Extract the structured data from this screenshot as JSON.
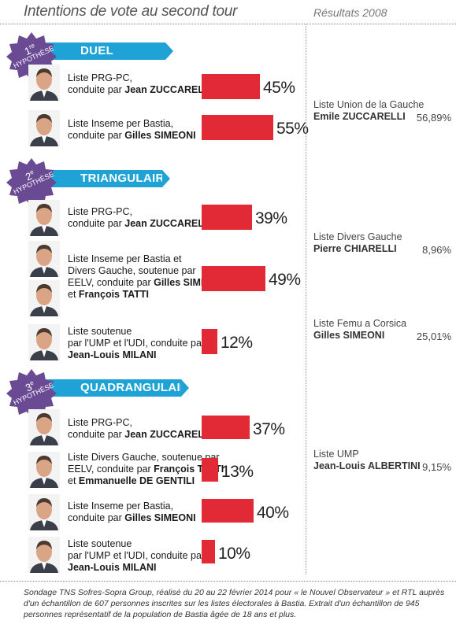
{
  "header": {
    "title": "Intentions de vote au second tour",
    "results_title": "Résultats 2008"
  },
  "sections": [
    {
      "name": "DUEL",
      "hyp_num": "1",
      "hyp_sup": "re",
      "hyp_word": "HYPOTHÈSE"
    },
    {
      "name": "TRIANGULAIRE",
      "hyp_num": "2",
      "hyp_sup": "e",
      "hyp_word": "HYPOTHÈSE"
    },
    {
      "name": "QUADRANGULAIRE",
      "hyp_num": "3",
      "hyp_sup": "e",
      "hyp_word": "HYPOTHÈSE"
    }
  ],
  "rows": [
    {
      "l1": "Liste PRG-PC,",
      "l2pre": "conduite par ",
      "l2b": "Jean ZUCCARELLI",
      "l3pre": "",
      "l3b": "",
      "l4": "",
      "value": 45,
      "pct": "45%"
    },
    {
      "l1": "Liste Inseme per Bastia,",
      "l2pre": "conduite par ",
      "l2b": "Gilles SIMEONI",
      "l3pre": "",
      "l3b": "",
      "l4": "",
      "value": 55,
      "pct": "55%"
    },
    {
      "l1": "Liste PRG-PC,",
      "l2pre": "conduite par ",
      "l2b": "Jean ZUCCARELLI",
      "l3pre": "",
      "l3b": "",
      "l4": "",
      "value": 39,
      "pct": "39%"
    },
    {
      "l1": "Liste Inseme per Bastia et",
      "l2pre": "Divers Gauche, soutenue par",
      "l2b": "",
      "l3pre": "EELV, conduite par ",
      "l3b": "Gilles SIMEONI",
      "l4pre": "et ",
      "l4b": "François TATTI",
      "value": 49,
      "pct": "49%"
    },
    {
      "l1": "Liste soutenue",
      "l2pre": "par l'UMP et l'UDI, conduite par",
      "l2b": "",
      "l3pre": "",
      "l3b": "Jean-Louis MILANI",
      "l4": "",
      "value": 12,
      "pct": "12%"
    },
    {
      "l1": "Liste PRG-PC,",
      "l2pre": "conduite par ",
      "l2b": "Jean ZUCCARELLI",
      "l3pre": "",
      "l3b": "",
      "l4": "",
      "value": 37,
      "pct": "37%"
    },
    {
      "l1": "Liste Divers Gauche, soutenue par",
      "l2pre": "EELV, conduite par ",
      "l2b": "François TATTI",
      "l3pre": "et ",
      "l3b": "Emmanuelle DE GENTILI",
      "l4": "",
      "value": 13,
      "pct": "13%"
    },
    {
      "l1": "Liste Inseme per Bastia,",
      "l2pre": "conduite par ",
      "l2b": "Gilles SIMEONI",
      "l3pre": "",
      "l3b": "",
      "l4": "",
      "value": 40,
      "pct": "40%"
    },
    {
      "l1": "Liste soutenue",
      "l2pre": "par l'UMP et l'UDI, conduite par",
      "l2b": "",
      "l3pre": "",
      "l3b": "Jean-Louis MILANI",
      "l4": "",
      "value": 10,
      "pct": "10%"
    }
  ],
  "results_2008": [
    {
      "list": "Liste Union de la Gauche",
      "name": "Emile ZUCCARELLI",
      "value": "56,89%"
    },
    {
      "list": "Liste Divers Gauche",
      "name": "Pierre CHIARELLI",
      "value": "8,96%"
    },
    {
      "list": "Liste Femu a Corsica",
      "name": "Gilles SIMEONI",
      "value": "25,01%"
    },
    {
      "list": "Liste UMP",
      "name": "Jean-Louis ALBERTINI",
      "value": "9,15%"
    }
  ],
  "footnote": "Sondage TNS Sofres-Sopra Group, réalisé du 20 au 22 février 2014 pour « le Nouvel Observateur » et RTL auprès d'un échantillon de 607 personnes inscrites sur les listes électorales à Bastia. Extrait d'un échantillon de 945 personnes représentatif de la population de Bastia âgée de 18 ans et plus.",
  "colors": {
    "bar": "#e22a37",
    "section": "#1fa3d6",
    "badge": "#6a4a93"
  },
  "chart_data": {
    "type": "bar",
    "groups": [
      {
        "name": "DUEL",
        "categories": [
          "Liste PRG-PC, conduite par Jean ZUCCARELLI",
          "Liste Inseme per Bastia, conduite par Gilles SIMEONI"
        ],
        "values": [
          45,
          55
        ]
      },
      {
        "name": "TRIANGULAIRE",
        "categories": [
          "Liste PRG-PC, conduite par Jean ZUCCARELLI",
          "Liste Inseme per Bastia et Divers Gauche, soutenue par EELV, conduite par Gilles SIMEONI et François TATTI",
          "Liste soutenue par l'UMP et l'UDI, conduite par Jean-Louis MILANI"
        ],
        "values": [
          39,
          49,
          12
        ]
      },
      {
        "name": "QUADRANGULAIRE",
        "categories": [
          "Liste PRG-PC, conduite par Jean ZUCCARELLI",
          "Liste Divers Gauche, soutenue par EELV, conduite par François TATTI et Emmanuelle DE GENTILI",
          "Liste Inseme per Bastia, conduite par Gilles SIMEONI",
          "Liste soutenue par l'UMP et l'UDI, conduite par Jean-Louis MILANI"
        ],
        "values": [
          37,
          13,
          40,
          10
        ]
      }
    ],
    "title": "Intentions de vote au second tour",
    "unit": "%"
  }
}
